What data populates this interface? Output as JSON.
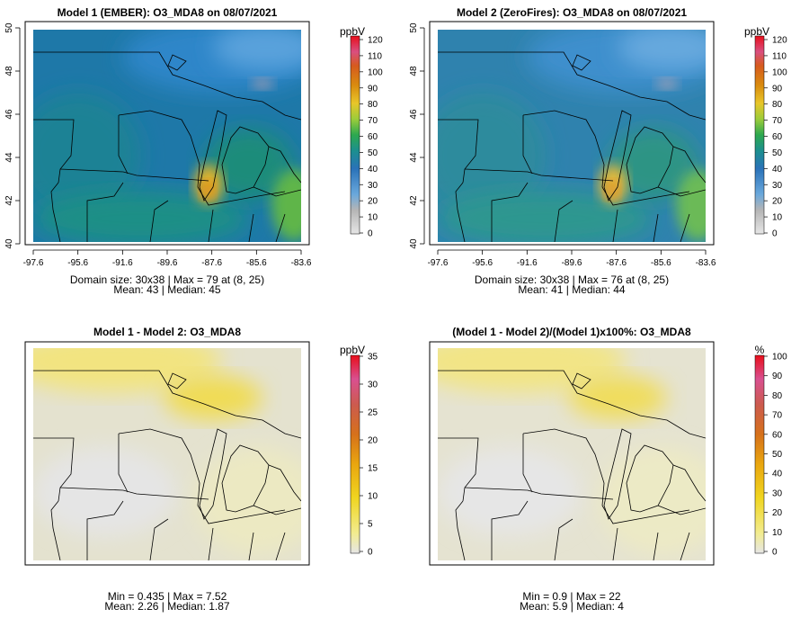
{
  "chart_data": [
    {
      "type": "heatmap",
      "title": "Model 1 (EMBER): O3_MDA8 on 08/07/2021",
      "x_ticks": [
        "-97.6",
        "-95.6",
        "-91.6",
        "-89.6",
        "-87.6",
        "-85.6",
        "-83.6"
      ],
      "y_ticks": [
        "40",
        "42",
        "44",
        "46",
        "48",
        "50"
      ],
      "ylim": [
        40,
        50
      ],
      "colorbar": {
        "unit": "ppbV",
        "ticks": [
          "0",
          "10",
          "20",
          "30",
          "40",
          "50",
          "60",
          "70",
          "80",
          "90",
          "100",
          "110",
          "120"
        ],
        "range": [
          0,
          120
        ]
      },
      "stats": {
        "line1": "Domain size: 30x38 | Max = 79 at (8, 25)",
        "line2": "Mean: 43 |  Median: 45",
        "domain_size": "30x38",
        "max": 79,
        "max_location": "(8, 25)",
        "mean": 43,
        "median": 45
      }
    },
    {
      "type": "heatmap",
      "title": "Model 2 (ZeroFires): O3_MDA8 on 08/07/2021",
      "x_ticks": [
        "-97.6",
        "-95.6",
        "-91.6",
        "-89.6",
        "-87.6",
        "-85.6",
        "-83.6"
      ],
      "y_ticks": [
        "40",
        "42",
        "44",
        "46",
        "48",
        "50"
      ],
      "ylim": [
        40,
        50
      ],
      "colorbar": {
        "unit": "ppbV",
        "ticks": [
          "0",
          "10",
          "20",
          "30",
          "40",
          "50",
          "60",
          "70",
          "80",
          "90",
          "100",
          "110",
          "120"
        ],
        "range": [
          0,
          120
        ]
      },
      "stats": {
        "line1": "Domain size: 30x38 | Max = 76 at (8, 25)",
        "line2": "Mean: 41 |  Median: 44",
        "domain_size": "30x38",
        "max": 76,
        "max_location": "(8, 25)",
        "mean": 41,
        "median": 44
      }
    },
    {
      "type": "heatmap",
      "title": "Model 1 - Model 2: O3_MDA8",
      "colorbar": {
        "unit": "ppbV",
        "ticks": [
          "0",
          "5",
          "10",
          "15",
          "20",
          "25",
          "30",
          "35"
        ],
        "range": [
          0,
          35
        ]
      },
      "stats": {
        "line1": "Min = 0.435 | Max = 7.52",
        "line2": "Mean: 2.26 |  Median: 1.87",
        "min": 0.435,
        "max": 7.52,
        "mean": 2.26,
        "median": 1.87
      }
    },
    {
      "type": "heatmap",
      "title": "(Model 1 - Model 2)/(Model 1)x100%: O3_MDA8",
      "colorbar": {
        "unit": "%",
        "ticks": [
          "0",
          "10",
          "20",
          "30",
          "40",
          "50",
          "60",
          "70",
          "80",
          "90",
          "100"
        ],
        "range": [
          0,
          100
        ]
      },
      "stats": {
        "line1": "Min = 0.9 | Max = 22",
        "line2": "Mean: 5.9 |  Median: 4",
        "min": 0.9,
        "max": 22,
        "mean": 5.9,
        "median": 4
      }
    }
  ]
}
